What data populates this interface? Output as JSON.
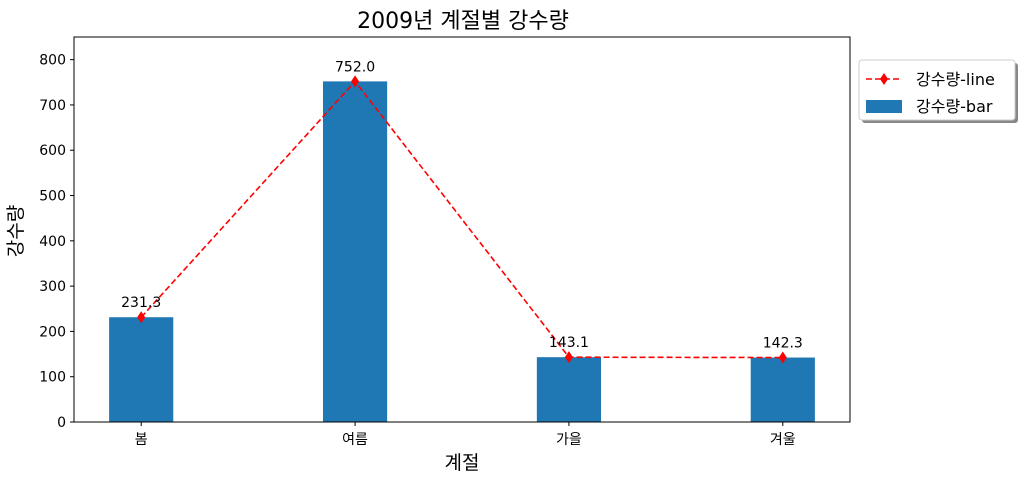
{
  "chart_data": {
    "type": "bar",
    "title": "2009년 계절별 강수량",
    "xlabel": "계절",
    "ylabel": "강수량",
    "categories": [
      "봄",
      "여름",
      "가을",
      "겨울"
    ],
    "ylim": [
      0,
      850
    ],
    "yticks": [
      0,
      100,
      200,
      300,
      400,
      500,
      600,
      700,
      800
    ],
    "grid": false,
    "legend_position": "upper-right, outside plot area",
    "series": [
      {
        "name": "강수량-line",
        "type": "line",
        "style": "dashed",
        "marker": "diamond",
        "color": "#ff0000",
        "values": [
          231.3,
          752.0,
          143.1,
          142.3
        ]
      },
      {
        "name": "강수량-bar",
        "type": "bar",
        "color": "#1f77b4",
        "values": [
          231.3,
          752.0,
          143.1,
          142.3
        ]
      }
    ],
    "data_labels": [
      "231.3",
      "752.0",
      "143.1",
      "142.3"
    ]
  }
}
